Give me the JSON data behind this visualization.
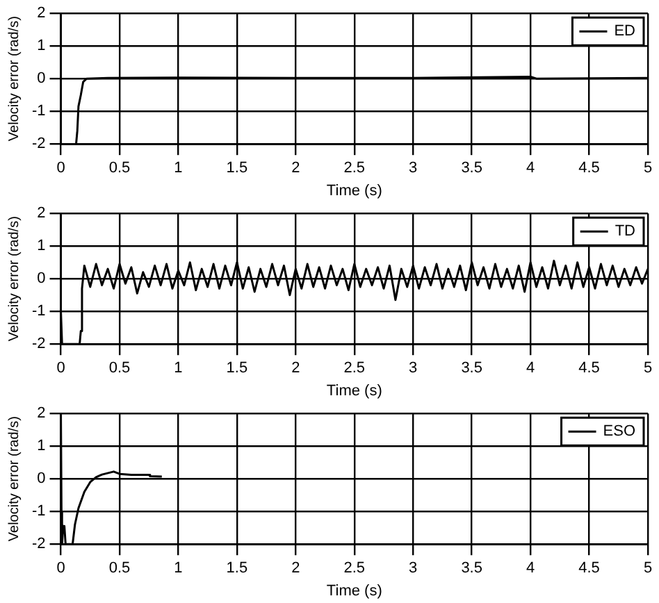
{
  "chart_data": [
    {
      "type": "line",
      "xlabel": "Time (s)",
      "ylabel": "Velocity error (rad/s)",
      "xlim": [
        0,
        5
      ],
      "ylim": [
        -2,
        2
      ],
      "xticks": [
        0,
        0.5,
        1,
        1.5,
        2,
        2.5,
        3,
        3.5,
        4,
        4.5,
        5
      ],
      "yticks": [
        -2,
        -1,
        0,
        1,
        2
      ],
      "grid": true,
      "legend": "top right",
      "marker": "none",
      "line_style": "solid",
      "series": [
        {
          "name": "ED",
          "color": "#000000",
          "x": [
            0.13,
            0.14,
            0.15,
            0.17,
            0.19,
            0.22,
            0.4,
            1,
            2,
            3,
            4,
            4.05,
            5
          ],
          "values": [
            -2,
            -1.6,
            -0.85,
            -0.5,
            -0.1,
            0,
            0.02,
            0.03,
            0.02,
            0.02,
            0.06,
            0,
            0.02
          ]
        }
      ]
    },
    {
      "type": "line",
      "xlabel": "Time (s)",
      "ylabel": "Velocity error (rad/s)",
      "xlim": [
        0,
        5
      ],
      "ylim": [
        -2,
        2
      ],
      "xticks": [
        0,
        0.5,
        1,
        1.5,
        2,
        2.5,
        3,
        3.5,
        4,
        4.5,
        5
      ],
      "yticks": [
        -2,
        -1,
        0,
        1,
        2
      ],
      "grid": true,
      "legend": "top right",
      "marker": "none",
      "line_style": "solid",
      "series": [
        {
          "name": "TD",
          "color": "#000000",
          "x": [
            0,
            0.01,
            0.16,
            0.17,
            0.18,
            0.2,
            0.25,
            0.3,
            0.35,
            0.4,
            0.45,
            0.5,
            0.55,
            0.6,
            0.65,
            0.7,
            0.75,
            0.8,
            0.85,
            0.9,
            0.95,
            1,
            1.05,
            1.1,
            1.15,
            1.2,
            1.25,
            1.3,
            1.35,
            1.4,
            1.45,
            1.5,
            1.55,
            1.6,
            1.65,
            1.7,
            1.75,
            1.8,
            1.85,
            1.9,
            1.95,
            2,
            2.05,
            2.1,
            2.15,
            2.2,
            2.25,
            2.3,
            2.35,
            2.4,
            2.45,
            2.5,
            2.55,
            2.6,
            2.65,
            2.7,
            2.75,
            2.8,
            2.85,
            2.9,
            2.95,
            3,
            3.05,
            3.1,
            3.15,
            3.2,
            3.25,
            3.3,
            3.35,
            3.4,
            3.45,
            3.5,
            3.55,
            3.6,
            3.65,
            3.7,
            3.75,
            3.8,
            3.85,
            3.9,
            3.95,
            4,
            4.05,
            4.1,
            4.15,
            4.2,
            4.25,
            4.3,
            4.35,
            4.4,
            4.45,
            4.5,
            4.55,
            4.6,
            4.65,
            4.7,
            4.75,
            4.8,
            4.85,
            4.9,
            4.95,
            5
          ],
          "values": [
            -1,
            -2,
            -2,
            -1.6,
            -0.3,
            0.4,
            -0.25,
            0.45,
            -0.2,
            0.3,
            -0.3,
            0.45,
            -0.15,
            0.35,
            -0.45,
            0.2,
            -0.25,
            0.4,
            -0.2,
            0.45,
            -0.3,
            0.25,
            -0.2,
            0.5,
            -0.35,
            0.3,
            -0.25,
            0.45,
            -0.3,
            0.4,
            -0.2,
            0.5,
            -0.3,
            0.35,
            -0.4,
            0.3,
            -0.25,
            0.45,
            -0.2,
            0.4,
            -0.5,
            0.3,
            -0.3,
            0.45,
            -0.25,
            0.35,
            -0.3,
            0.4,
            -0.2,
            0.3,
            -0.35,
            0.45,
            -0.25,
            0.3,
            -0.2,
            0.35,
            -0.3,
            0.4,
            -0.65,
            0.3,
            -0.25,
            0.4,
            -0.3,
            0.35,
            -0.2,
            0.45,
            -0.3,
            0.3,
            -0.25,
            0.4,
            -0.35,
            0.5,
            -0.2,
            0.35,
            -0.3,
            0.45,
            -0.25,
            0.3,
            -0.3,
            0.4,
            -0.4,
            0.5,
            -0.25,
            0.35,
            -0.3,
            0.55,
            -0.2,
            0.4,
            -0.3,
            0.5,
            -0.25,
            0.35,
            -0.3,
            0.45,
            -0.2,
            0.4,
            -0.25,
            0.3,
            -0.2,
            0.35,
            -0.15,
            0.3
          ]
        }
      ]
    },
    {
      "type": "line",
      "xlabel": "Time (s)",
      "ylabel": "Velocity error (rad/s)",
      "xlim": [
        0,
        5
      ],
      "ylim": [
        -2,
        2
      ],
      "xticks": [
        0,
        0.5,
        1,
        1.5,
        2,
        2.5,
        3,
        3.5,
        4,
        4.5,
        5
      ],
      "yticks": [
        -2,
        -1,
        0,
        1,
        2
      ],
      "grid": true,
      "legend": "top right",
      "marker": "none",
      "line_style": "solid",
      "series": [
        {
          "name": "ESO",
          "color": "#000000",
          "x": [
            0,
            0.005,
            0.01,
            0.02,
            0.03,
            0.04,
            0.1,
            0.12,
            0.15,
            0.2,
            0.25,
            0.3,
            0.35,
            0.45,
            0.5,
            0.6,
            0.75,
            0.76,
            0.86
          ],
          "values": [
            2,
            -1,
            -2,
            -1.45,
            -1.45,
            -2,
            -2,
            -1.4,
            -0.9,
            -0.4,
            -0.1,
            0.05,
            0.13,
            0.22,
            0.15,
            0.12,
            0.12,
            0.08,
            0.07
          ]
        }
      ]
    }
  ]
}
